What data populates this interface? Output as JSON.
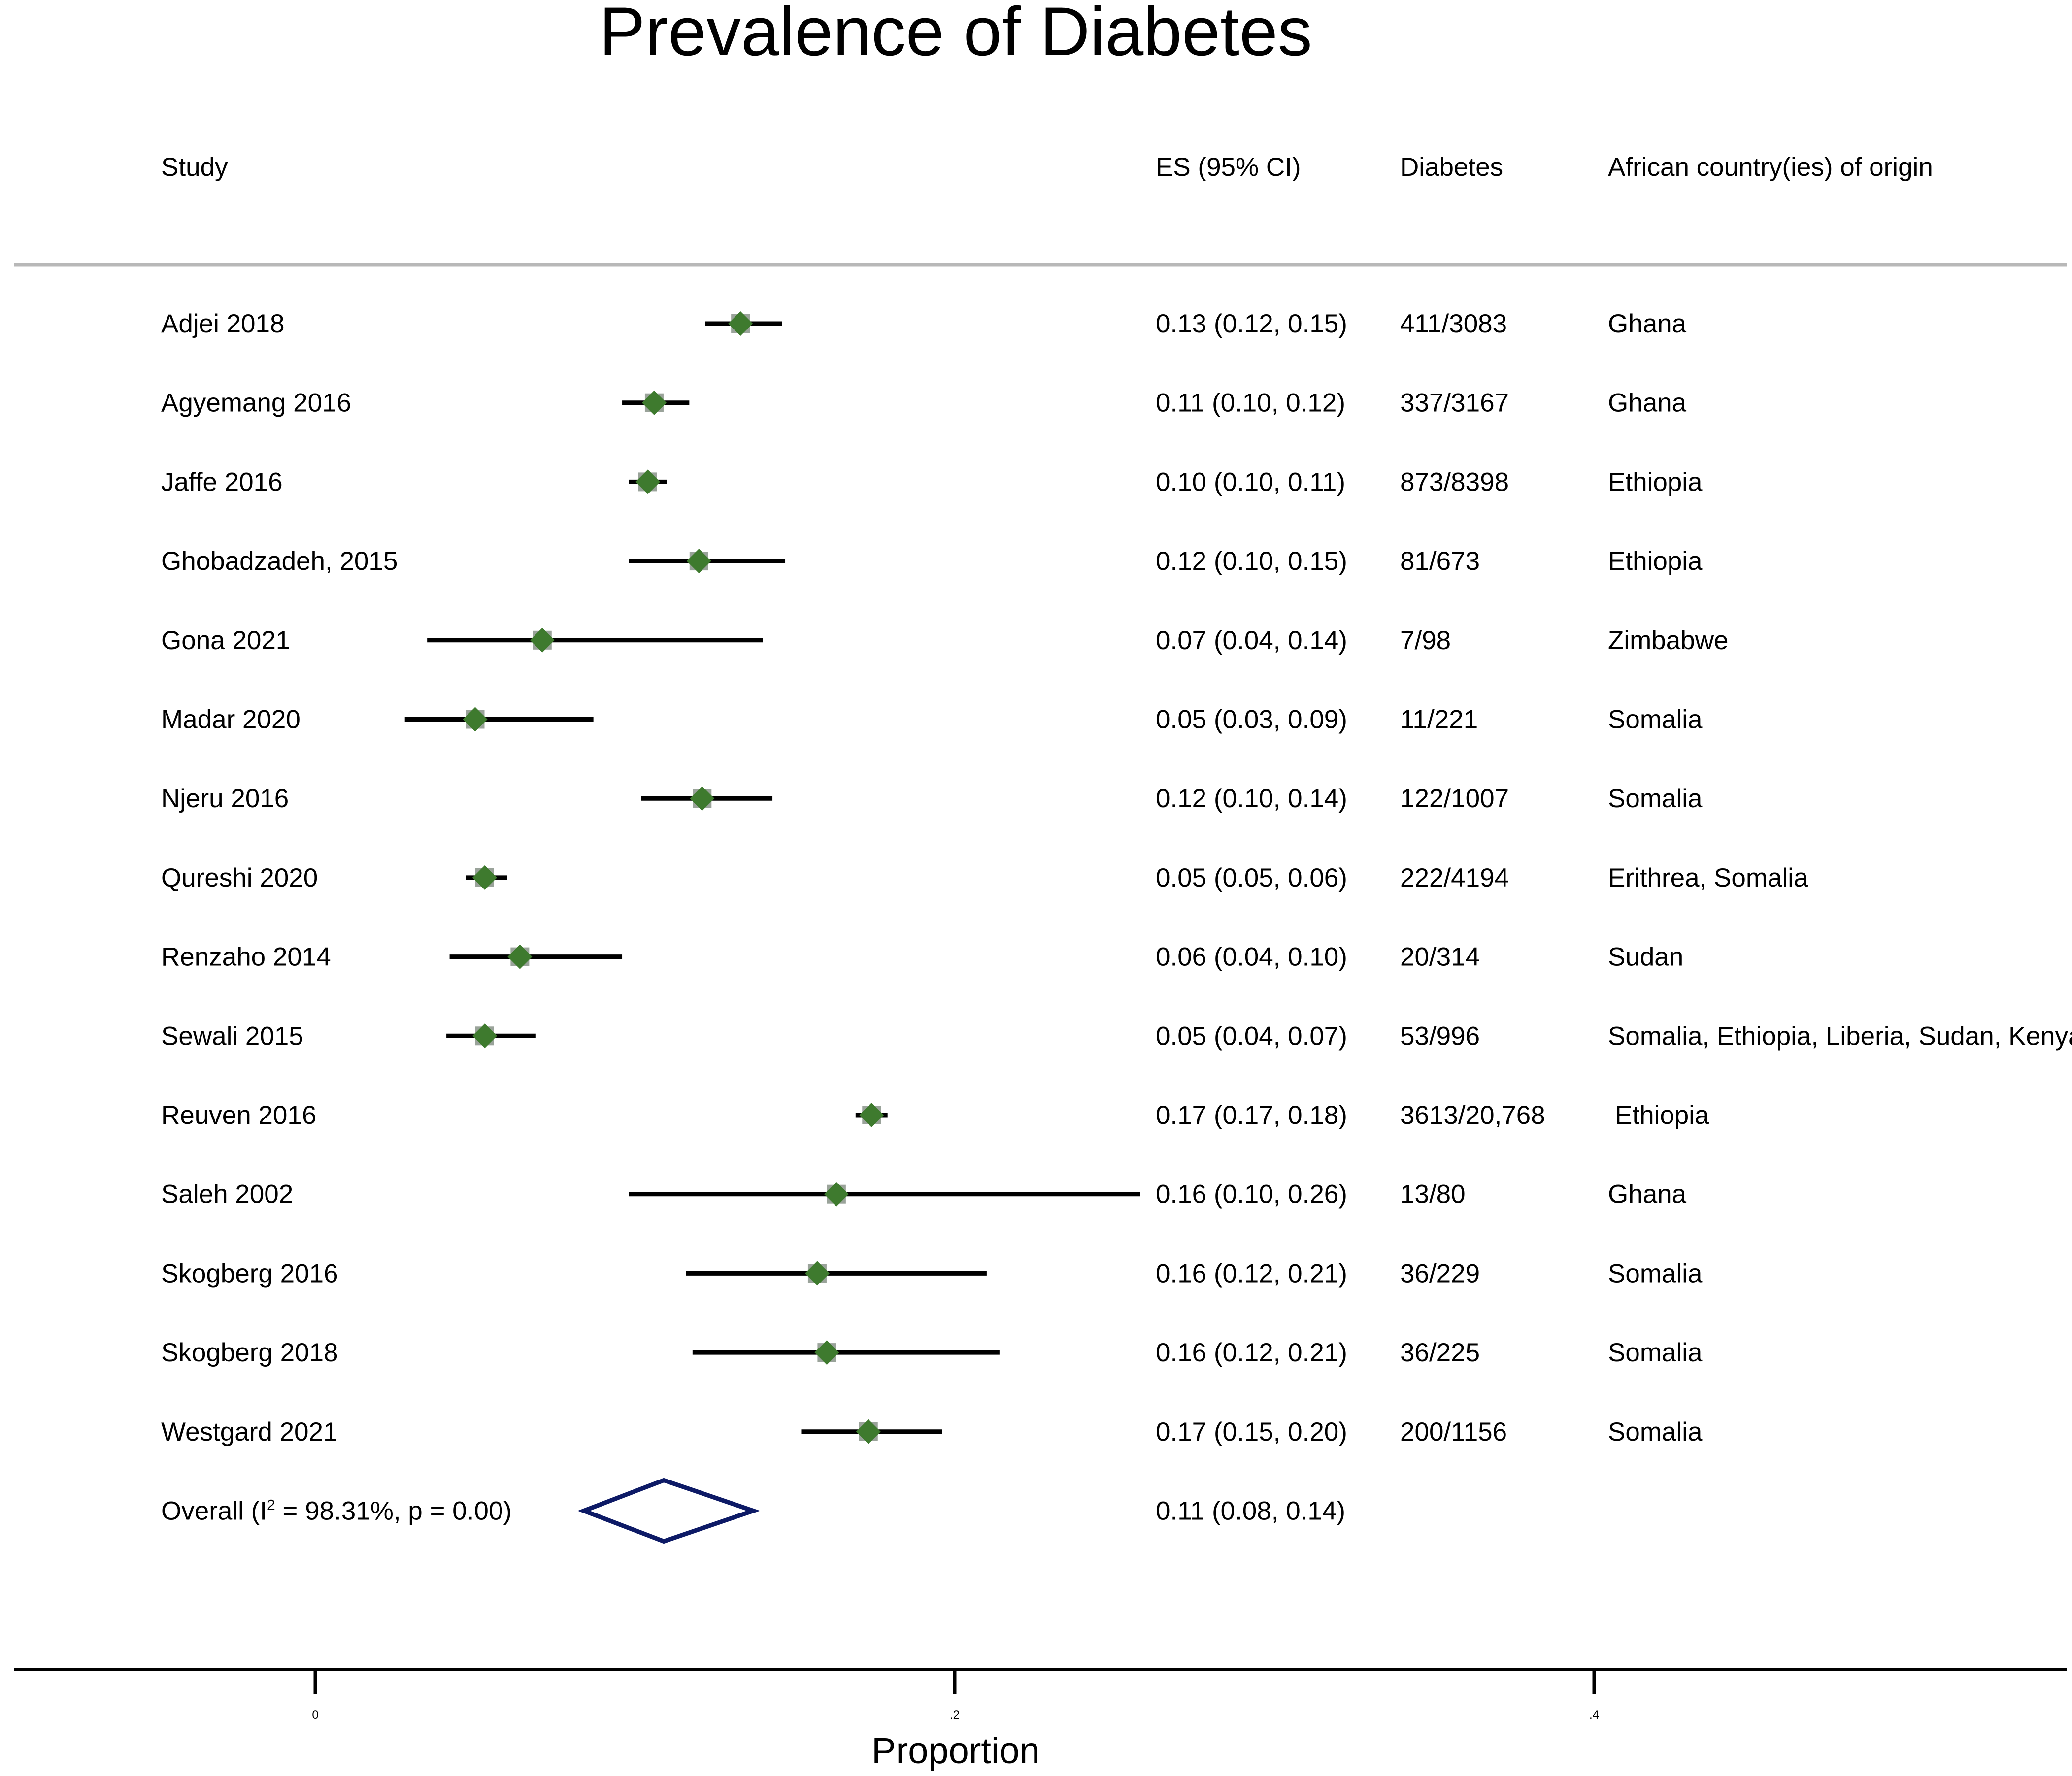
{
  "chart_data": {
    "type": "forest",
    "title": "Prevalence of Diabetes",
    "xlabel": "Proportion",
    "xlim": [
      -0.095,
      0.55
    ],
    "ticks": [
      {
        "value": 0,
        "label": "0"
      },
      {
        "value": 0.2,
        "label": ".2"
      },
      {
        "value": 0.4,
        "label": ".4"
      }
    ],
    "headers": {
      "study": "Study",
      "es": "ES (95% CI)",
      "diabetes": "Diabetes",
      "origin": "African country(ies) of origin"
    },
    "studies": [
      {
        "name": "Adjei 2018",
        "es": 0.133,
        "lo": 0.122,
        "hi": 0.146,
        "es_label": "0.13 (0.12, 0.15)",
        "diabetes": "411/3083",
        "origin": "Ghana"
      },
      {
        "name": "Agyemang 2016",
        "es": 0.106,
        "lo": 0.096,
        "hi": 0.117,
        "es_label": "0.11 (0.10, 0.12)",
        "diabetes": "337/3167",
        "origin": "Ghana"
      },
      {
        "name": "Jaffe 2016",
        "es": 0.104,
        "lo": 0.098,
        "hi": 0.11,
        "es_label": "0.10 (0.10, 0.11)",
        "diabetes": "873/8398",
        "origin": "Ethiopia"
      },
      {
        "name": "Ghobadzadeh, 2015",
        "es": 0.12,
        "lo": 0.098,
        "hi": 0.147,
        "es_label": "0.12 (0.10, 0.15)",
        "diabetes": "81/673",
        "origin": "Ethiopia"
      },
      {
        "name": "Gona 2021",
        "es": 0.071,
        "lo": 0.035,
        "hi": 0.14,
        "es_label": "0.07 (0.04, 0.14)",
        "diabetes": "7/98",
        "origin": "Zimbabwe"
      },
      {
        "name": "Madar 2020",
        "es": 0.05,
        "lo": 0.028,
        "hi": 0.087,
        "es_label": "0.05 (0.03, 0.09)",
        "diabetes": "11/221",
        "origin": "Somalia"
      },
      {
        "name": "Njeru 2016",
        "es": 0.121,
        "lo": 0.102,
        "hi": 0.143,
        "es_label": "0.12 (0.10, 0.14)",
        "diabetes": "122/1007",
        "origin": "Somalia"
      },
      {
        "name": "Qureshi 2020",
        "es": 0.053,
        "lo": 0.047,
        "hi": 0.06,
        "es_label": "0.05 (0.05, 0.06)",
        "diabetes": "222/4194",
        "origin": "Erithrea, Somalia"
      },
      {
        "name": "Renzaho 2014",
        "es": 0.064,
        "lo": 0.042,
        "hi": 0.096,
        "es_label": "0.06 (0.04, 0.10)",
        "diabetes": "20/314",
        "origin": "Sudan"
      },
      {
        "name": "Sewali 2015",
        "es": 0.053,
        "lo": 0.041,
        "hi": 0.069,
        "es_label": "0.05 (0.04, 0.07)",
        "diabetes": "53/996",
        "origin": "Somalia, Ethiopia, Liberia, Sudan, Kenya"
      },
      {
        "name": "Reuven 2016",
        "es": 0.174,
        "lo": 0.169,
        "hi": 0.179,
        "es_label": "0.17 (0.17, 0.18)",
        "diabetes": "3613/20,768",
        "origin": "Ethiopia"
      },
      {
        "name": "Saleh 2002",
        "es": 0.163,
        "lo": 0.098,
        "hi": 0.258,
        "es_label": "0.16 (0.10, 0.26)",
        "diabetes": "13/80",
        "origin": "Ghana"
      },
      {
        "name": "Skogberg 2016",
        "es": 0.157,
        "lo": 0.116,
        "hi": 0.21,
        "es_label": "0.16 (0.12, 0.21)",
        "diabetes": "36/229",
        "origin": "Somalia"
      },
      {
        "name": "Skogberg 2018",
        "es": 0.16,
        "lo": 0.118,
        "hi": 0.214,
        "es_label": "0.16 (0.12, 0.21)",
        "diabetes": "36/225",
        "origin": "Somalia"
      },
      {
        "name": "Westgard 2021",
        "es": 0.173,
        "lo": 0.152,
        "hi": 0.196,
        "es_label": "0.17 (0.15, 0.20)",
        "diabetes": "200/1156",
        "origin": "Somalia"
      }
    ],
    "overall": {
      "label_prefix": "Overall  (I",
      "label_sup": "2",
      "label_suffix": " = 98.31%, p = 0.00)",
      "es": 0.109,
      "lo": 0.084,
      "hi": 0.137,
      "es_label": "0.11 (0.08, 0.14)"
    },
    "colors": {
      "marker": "#3e7a2e",
      "marker_box": "#9aa39a",
      "ci_line": "#000000",
      "overall_diamond": "#0d1a66",
      "separator": "#b8b8b8",
      "axis": "#000000"
    }
  }
}
